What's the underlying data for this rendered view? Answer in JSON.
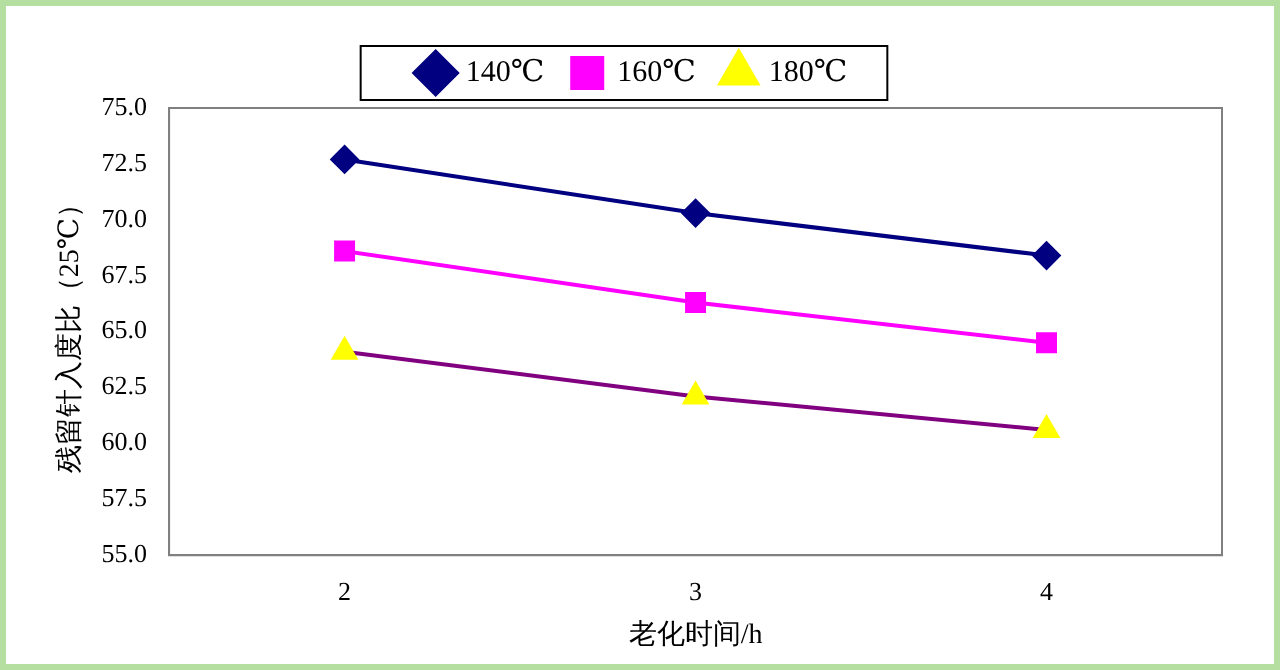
{
  "chart_data": {
    "type": "line",
    "xlabel": "老化时间/h",
    "ylabel": "残留针入度比（25℃）",
    "categories": [
      "2",
      "3",
      "4"
    ],
    "series": [
      {
        "name": "140℃",
        "color": "#000080",
        "marker": "diamond",
        "values": [
          72.7,
          70.3,
          68.4
        ]
      },
      {
        "name": "160℃",
        "color": "#ff00ff",
        "marker": "square",
        "values": [
          68.6,
          66.3,
          64.5
        ]
      },
      {
        "name": "180℃",
        "color": "#800080",
        "colors": [
          "#ffff00",
          "#ffff00",
          "#ffff00"
        ],
        "marker": "triangle",
        "values": [
          64.1,
          62.1,
          60.6
        ]
      }
    ],
    "ylim": [
      55,
      75
    ],
    "yticks": [
      {
        "value": 55,
        "label": "55.0"
      },
      {
        "value": 57.5,
        "label": "57.5"
      },
      {
        "value": 60,
        "label": "60.0"
      },
      {
        "value": 62.5,
        "label": "62.5"
      },
      {
        "value": 65,
        "label": "65.0"
      },
      {
        "value": 67.5,
        "label": "67.5"
      },
      {
        "value": 70,
        "label": "70.0"
      },
      {
        "value": 72.5,
        "label": "72.5"
      },
      {
        "value": 75,
        "label": "75.0"
      }
    ],
    "grid": false,
    "legend": "top",
    "line_style": "solid"
  }
}
